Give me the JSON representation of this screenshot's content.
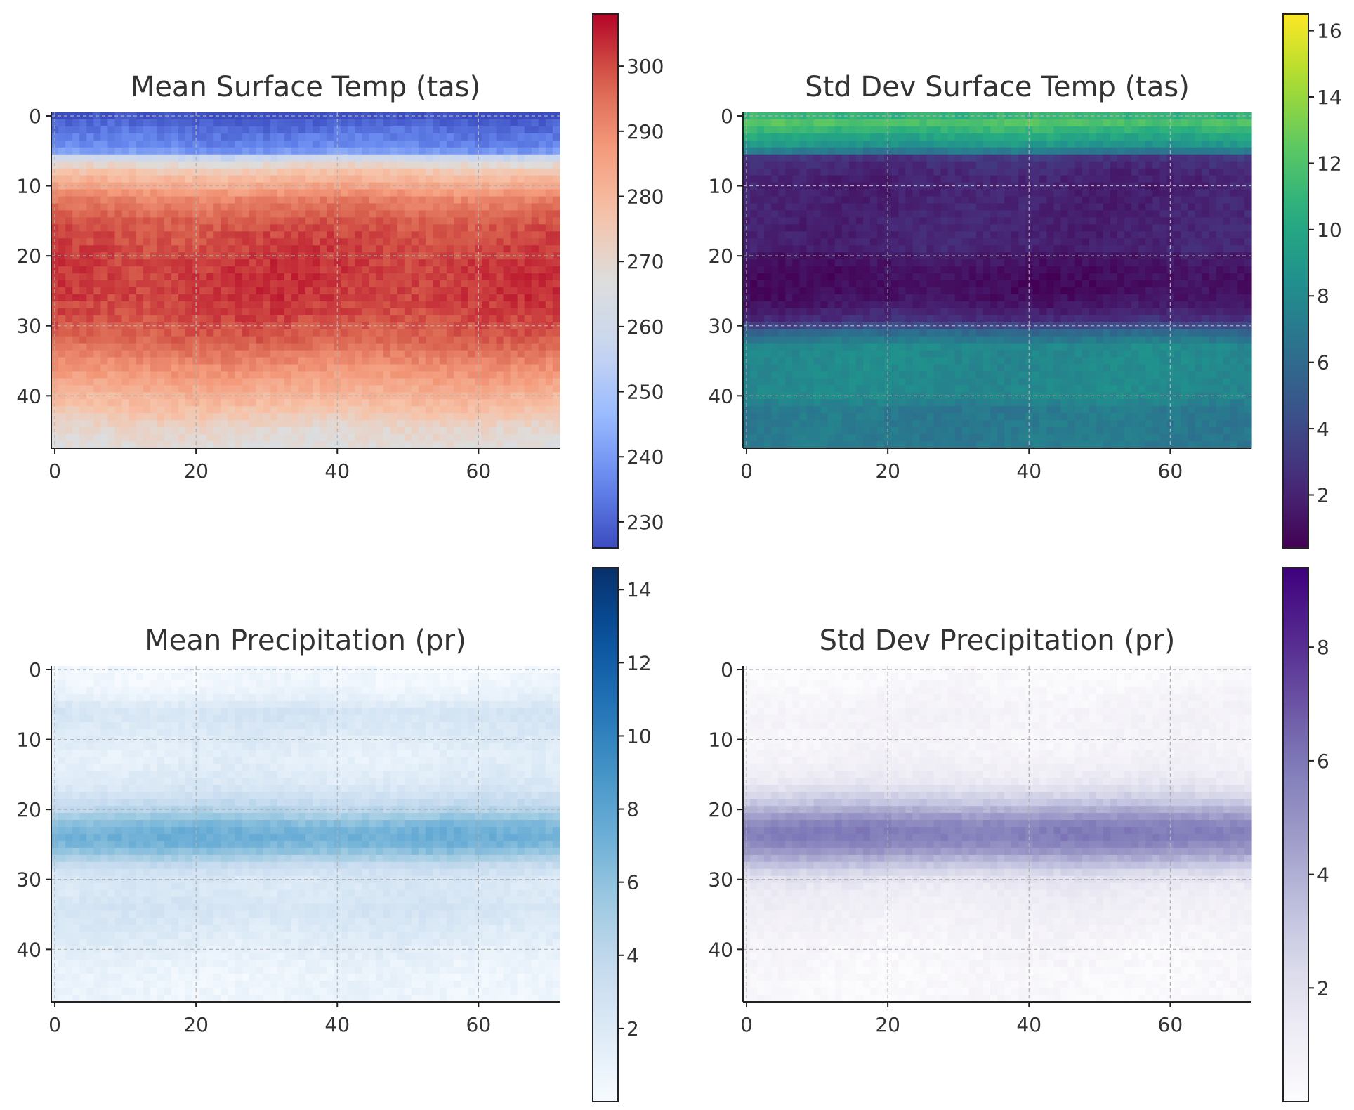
{
  "chart_data": [
    {
      "type": "heatmap",
      "title": "Mean Surface Temp (tas)",
      "colormap": "coolwarm",
      "grid": true,
      "colorbar": {
        "range": [
          226,
          308
        ],
        "ticks": [
          230,
          240,
          250,
          260,
          270,
          280,
          290,
          300
        ]
      },
      "xlim": [
        -0.5,
        71.5
      ],
      "ylim": [
        47.5,
        -0.5
      ],
      "xticks": [
        0,
        20,
        40,
        60
      ],
      "yticks": [
        0,
        10,
        20,
        30,
        40
      ],
      "grid_shape": [
        48,
        72
      ],
      "row_profile": [
        226,
        230,
        232,
        234,
        236,
        240,
        258,
        270,
        276,
        280,
        284,
        288,
        292,
        294,
        296,
        298,
        299,
        300,
        300,
        301,
        301,
        302,
        302,
        302,
        302,
        302,
        302,
        301,
        301,
        300,
        299,
        298,
        297,
        295,
        293,
        291,
        289,
        287,
        285,
        283,
        281,
        279,
        277,
        275,
        272,
        270,
        269,
        268
      ]
    },
    {
      "type": "heatmap",
      "title": "Std Dev Surface Temp (tas)",
      "colormap": "viridis",
      "grid": true,
      "colorbar": {
        "range": [
          0.4,
          16.5
        ],
        "ticks": [
          2,
          4,
          6,
          8,
          10,
          12,
          14,
          16
        ]
      },
      "xlim": [
        -0.5,
        71.5
      ],
      "ylim": [
        47.5,
        -0.5
      ],
      "xticks": [
        0,
        20,
        40,
        60
      ],
      "yticks": [
        0,
        10,
        20,
        30,
        40
      ],
      "grid_shape": [
        48,
        72
      ],
      "row_profile": [
        11,
        12,
        11,
        10,
        9,
        7,
        3,
        2.5,
        2.2,
        2.0,
        2.0,
        2.0,
        2.0,
        2.0,
        2.0,
        2.0,
        2.0,
        2.0,
        2.0,
        2.0,
        1.5,
        1.3,
        1.1,
        1.0,
        1.0,
        1.0,
        1.2,
        1.5,
        2.0,
        2.5,
        4,
        6,
        7,
        8,
        8,
        8,
        8,
        8,
        8,
        8,
        8,
        7.5,
        7,
        7,
        7,
        7,
        7,
        7
      ]
    },
    {
      "type": "heatmap",
      "title": "Mean Precipitation (pr)",
      "colormap": "Blues",
      "grid": true,
      "colorbar": {
        "range": [
          0,
          14.6
        ],
        "ticks": [
          2,
          4,
          6,
          8,
          10,
          12,
          14
        ]
      },
      "xlim": [
        -0.5,
        71.5
      ],
      "ylim": [
        47.5,
        -0.5
      ],
      "xticks": [
        0,
        20,
        40,
        60
      ],
      "yticks": [
        0,
        10,
        20,
        30,
        40
      ],
      "grid_shape": [
        48,
        72
      ],
      "row_profile": [
        0.3,
        0.4,
        0.5,
        0.8,
        1.2,
        2.0,
        2.4,
        2.4,
        2.2,
        2.0,
        1.8,
        1.6,
        1.4,
        1.4,
        1.6,
        1.8,
        2.0,
        2.4,
        3.0,
        3.6,
        4.4,
        5.4,
        6.4,
        7.0,
        7.2,
        6.8,
        6.0,
        4.8,
        3.6,
        2.8,
        2.4,
        2.2,
        2.2,
        2.4,
        2.6,
        2.4,
        2.2,
        2.0,
        1.8,
        1.6,
        1.4,
        1.2,
        1.0,
        0.9,
        0.8,
        0.8,
        0.8,
        0.8
      ]
    },
    {
      "type": "heatmap",
      "title": "Std Dev Precipitation (pr)",
      "colormap": "Purples",
      "grid": true,
      "colorbar": {
        "range": [
          0,
          9.4
        ],
        "ticks": [
          2,
          4,
          6,
          8
        ]
      },
      "xlim": [
        -0.5,
        71.5
      ],
      "ylim": [
        47.5,
        -0.5
      ],
      "xticks": [
        0,
        20,
        40,
        60
      ],
      "yticks": [
        0,
        10,
        20,
        30,
        40
      ],
      "grid_shape": [
        48,
        72
      ],
      "row_profile": [
        0.2,
        0.2,
        0.3,
        0.4,
        0.5,
        0.6,
        0.7,
        0.7,
        0.7,
        0.6,
        0.6,
        0.6,
        0.7,
        0.8,
        1.0,
        1.2,
        1.5,
        2.0,
        2.6,
        3.2,
        4.0,
        4.8,
        5.5,
        5.8,
        5.8,
        5.4,
        4.8,
        4.0,
        3.2,
        2.4,
        1.8,
        1.4,
        1.2,
        1.1,
        1.0,
        0.9,
        0.8,
        0.7,
        0.6,
        0.5,
        0.5,
        0.4,
        0.4,
        0.3,
        0.3,
        0.3,
        0.3,
        0.3
      ]
    }
  ]
}
